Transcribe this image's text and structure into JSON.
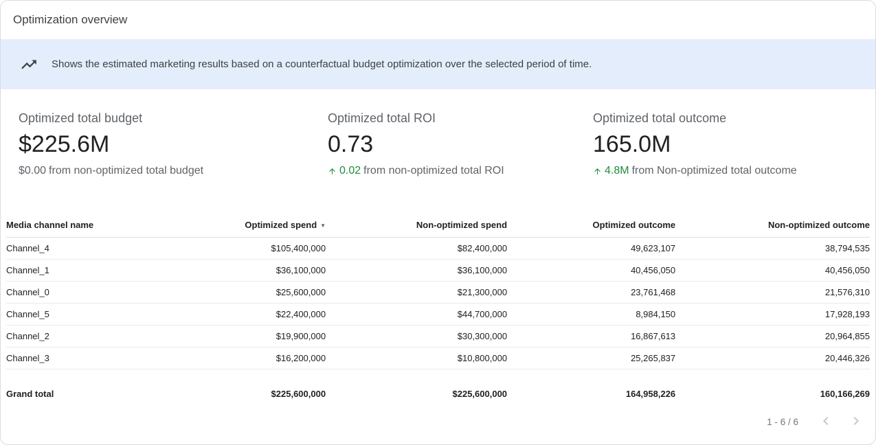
{
  "header": {
    "title": "Optimization overview"
  },
  "banner": {
    "icon": "trending-up-icon",
    "text": "Shows the estimated marketing results based on a counterfactual budget optimization over the selected period of time."
  },
  "kpis": [
    {
      "label": "Optimized total budget",
      "value": "$225.6M",
      "delta_value": "$0.00",
      "delta_positive": false,
      "delta_suffix": "from non-optimized total budget"
    },
    {
      "label": "Optimized total ROI",
      "value": "0.73",
      "delta_value": "0.02",
      "delta_positive": true,
      "delta_suffix": "from non-optimized total ROI"
    },
    {
      "label": "Optimized total outcome",
      "value": "165.0M",
      "delta_value": "4.8M",
      "delta_positive": true,
      "delta_suffix": "from Non-optimized total outcome"
    }
  ],
  "table": {
    "columns": [
      "Media channel name",
      "Optimized spend",
      "Non-optimized spend",
      "Optimized outcome",
      "Non-optimized outcome"
    ],
    "sort_column_index": 1,
    "sort_indicator": "▼",
    "rows": [
      [
        "Channel_4",
        "$105,400,000",
        "$82,400,000",
        "49,623,107",
        "38,794,535"
      ],
      [
        "Channel_1",
        "$36,100,000",
        "$36,100,000",
        "40,456,050",
        "40,456,050"
      ],
      [
        "Channel_0",
        "$25,600,000",
        "$21,300,000",
        "23,761,468",
        "21,576,310"
      ],
      [
        "Channel_5",
        "$22,400,000",
        "$44,700,000",
        "8,984,150",
        "17,928,193"
      ],
      [
        "Channel_2",
        "$19,900,000",
        "$30,300,000",
        "16,867,613",
        "20,964,855"
      ],
      [
        "Channel_3",
        "$16,200,000",
        "$10,800,000",
        "25,265,837",
        "20,446,326"
      ]
    ],
    "grand_total": [
      "Grand total",
      "$225,600,000",
      "$225,600,000",
      "164,958,226",
      "160,166,269"
    ]
  },
  "pagination": {
    "label": "1 - 6 / 6"
  },
  "colors": {
    "banner_bg": "#e4edfb",
    "positive_green": "#1e8e3e",
    "text_primary": "#202124",
    "text_secondary": "#5f6368"
  }
}
